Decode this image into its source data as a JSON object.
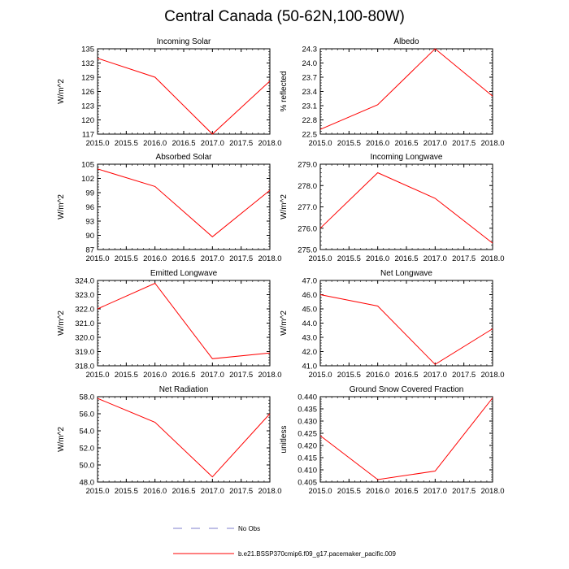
{
  "figure": {
    "title": "Central Canada (50-62N,100-80W)"
  },
  "legend": {
    "entries": [
      {
        "label": "No Obs",
        "style": "dashed",
        "color": "#7f7fcc"
      },
      {
        "label": "b.e21.BSSP370cmip6.f09_g17.pacemaker_pacific.009",
        "style": "solid",
        "color": "#ff0000"
      }
    ]
  },
  "colors": {
    "line": "#ff0000",
    "axis": "#000000",
    "obs": "#7f7fcc"
  },
  "chart_data": [
    {
      "type": "line",
      "title": "Incoming Solar",
      "xlabel": "",
      "ylabel": "W/m^2",
      "x": [
        2015.0,
        2016.0,
        2017.0,
        2018.0
      ],
      "series": [
        {
          "name": "b.e21.BSSP370cmip6.f09_g17.pacemaker_pacific.009",
          "values": [
            133.0,
            129.0,
            117.0,
            128.2
          ]
        }
      ],
      "xlim": [
        2015.0,
        2018.0
      ],
      "ylim": [
        117,
        135
      ],
      "xticks": [
        "2015.0",
        "2015.5",
        "2016.0",
        "2016.5",
        "2017.0",
        "2017.5",
        "2018.0"
      ],
      "yticks": [
        "117",
        "120",
        "123",
        "126",
        "129",
        "132",
        "135"
      ]
    },
    {
      "type": "line",
      "title": "Albedo",
      "xlabel": "",
      "ylabel": "% reflected",
      "x": [
        2015.0,
        2016.0,
        2017.0,
        2018.0
      ],
      "series": [
        {
          "name": "b.e21.BSSP370cmip6.f09_g17.pacemaker_pacific.009",
          "values": [
            22.6,
            23.12,
            24.3,
            23.3
          ]
        }
      ],
      "xlim": [
        2015.0,
        2018.0
      ],
      "ylim": [
        22.5,
        24.3
      ],
      "xticks": [
        "2015.0",
        "2015.5",
        "2016.0",
        "2016.5",
        "2017.0",
        "2017.5",
        "2018.0"
      ],
      "yticks": [
        "22.5",
        "22.8",
        "23.1",
        "23.4",
        "23.7",
        "24.0",
        "24.3"
      ]
    },
    {
      "type": "line",
      "title": "Absorbed Solar",
      "xlabel": "",
      "ylabel": "W/m^2",
      "x": [
        2015.0,
        2016.0,
        2017.0,
        2018.0
      ],
      "series": [
        {
          "name": "b.e21.BSSP370cmip6.f09_g17.pacemaker_pacific.009",
          "values": [
            104.0,
            100.3,
            89.7,
            99.5
          ]
        }
      ],
      "xlim": [
        2015.0,
        2018.0
      ],
      "ylim": [
        87,
        105
      ],
      "xticks": [
        "2015.0",
        "2015.5",
        "2016.0",
        "2016.5",
        "2017.0",
        "2017.5",
        "2018.0"
      ],
      "yticks": [
        "87",
        "90",
        "93",
        "96",
        "99",
        "102",
        "105"
      ]
    },
    {
      "type": "line",
      "title": "Incoming Longwave",
      "xlabel": "",
      "ylabel": "W/m^2",
      "x": [
        2015.0,
        2016.0,
        2017.0,
        2018.0
      ],
      "series": [
        {
          "name": "b.e21.BSSP370cmip6.f09_g17.pacemaker_pacific.009",
          "values": [
            276.0,
            278.6,
            277.4,
            275.3
          ]
        }
      ],
      "xlim": [
        2015.0,
        2018.0
      ],
      "ylim": [
        275.0,
        279.0
      ],
      "xticks": [
        "2015.0",
        "2015.5",
        "2016.0",
        "2016.5",
        "2017.0",
        "2017.5",
        "2018.0"
      ],
      "yticks": [
        "275.0",
        "276.0",
        "277.0",
        "278.0",
        "279.0"
      ]
    },
    {
      "type": "line",
      "title": "Emitted Longwave",
      "xlabel": "",
      "ylabel": "W/m^2",
      "x": [
        2015.0,
        2016.0,
        2017.0,
        2018.0
      ],
      "series": [
        {
          "name": "b.e21.BSSP370cmip6.f09_g17.pacemaker_pacific.009",
          "values": [
            322.0,
            323.8,
            318.5,
            318.9
          ]
        }
      ],
      "xlim": [
        2015.0,
        2018.0
      ],
      "ylim": [
        318.0,
        324.0
      ],
      "xticks": [
        "2015.0",
        "2015.5",
        "2016.0",
        "2016.5",
        "2017.0",
        "2017.5",
        "2018.0"
      ],
      "yticks": [
        "318.0",
        "319.0",
        "320.0",
        "321.0",
        "322.0",
        "323.0",
        "324.0"
      ]
    },
    {
      "type": "line",
      "title": "Net Longwave",
      "xlabel": "",
      "ylabel": "W/m^2",
      "x": [
        2015.0,
        2016.0,
        2017.0,
        2018.0
      ],
      "series": [
        {
          "name": "b.e21.BSSP370cmip6.f09_g17.pacemaker_pacific.009",
          "values": [
            46.0,
            45.2,
            41.1,
            43.6
          ]
        }
      ],
      "xlim": [
        2015.0,
        2018.0
      ],
      "ylim": [
        41.0,
        47.0
      ],
      "xticks": [
        "2015.0",
        "2015.5",
        "2016.0",
        "2016.5",
        "2017.0",
        "2017.5",
        "2018.0"
      ],
      "yticks": [
        "41.0",
        "42.0",
        "43.0",
        "44.0",
        "45.0",
        "46.0",
        "47.0"
      ]
    },
    {
      "type": "line",
      "title": "Net Radiation",
      "xlabel": "",
      "ylabel": "W/m^2",
      "x": [
        2015.0,
        2016.0,
        2017.0,
        2018.0
      ],
      "series": [
        {
          "name": "b.e21.BSSP370cmip6.f09_g17.pacemaker_pacific.009",
          "values": [
            57.8,
            55.0,
            48.6,
            56.0
          ]
        }
      ],
      "xlim": [
        2015.0,
        2018.0
      ],
      "ylim": [
        48.0,
        58.0
      ],
      "xticks": [
        "2015.0",
        "2015.5",
        "2016.0",
        "2016.5",
        "2017.0",
        "2017.5",
        "2018.0"
      ],
      "yticks": [
        "48.0",
        "50.0",
        "52.0",
        "54.0",
        "56.0",
        "58.0"
      ]
    },
    {
      "type": "line",
      "title": "Ground Snow Covered Fraction",
      "xlabel": "",
      "ylabel": "unitless",
      "x": [
        2015.0,
        2016.0,
        2017.0,
        2018.0
      ],
      "series": [
        {
          "name": "b.e21.BSSP370cmip6.f09_g17.pacemaker_pacific.009",
          "values": [
            0.424,
            0.406,
            0.4095,
            0.4395
          ]
        }
      ],
      "xlim": [
        2015.0,
        2018.0
      ],
      "ylim": [
        0.405,
        0.44
      ],
      "xticks": [
        "2015.0",
        "2015.5",
        "2016.0",
        "2016.5",
        "2017.0",
        "2017.5",
        "2018.0"
      ],
      "yticks": [
        "0.405",
        "0.410",
        "0.415",
        "0.420",
        "0.425",
        "0.430",
        "0.435",
        "0.440"
      ]
    }
  ]
}
